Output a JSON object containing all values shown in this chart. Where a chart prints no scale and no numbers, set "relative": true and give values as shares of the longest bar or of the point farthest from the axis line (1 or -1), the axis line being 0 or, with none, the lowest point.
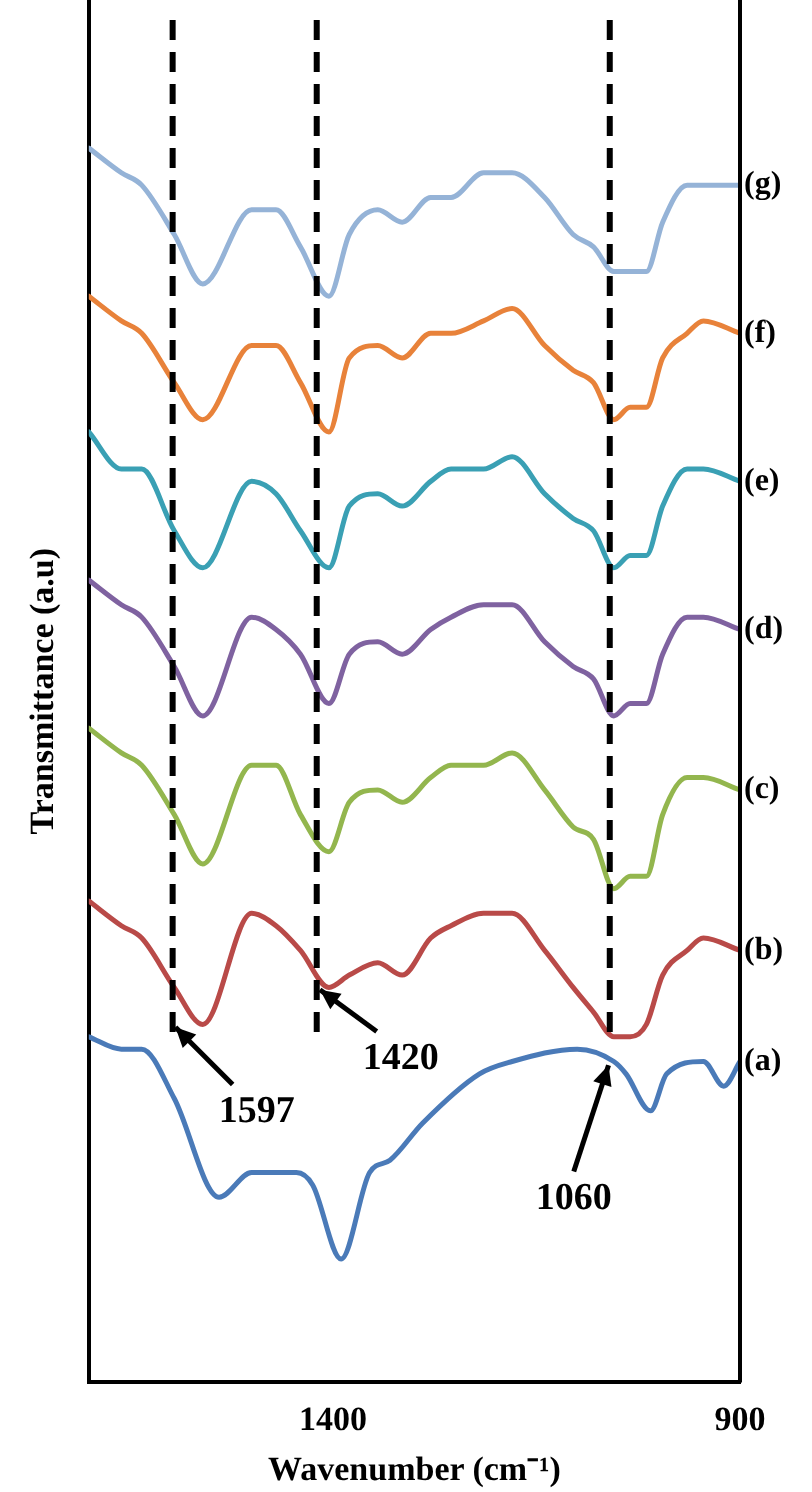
{
  "chart_data": {
    "type": "line",
    "xlabel": "Wavenumber (cm⁻¹)",
    "ylabel": "Transmittance (a.u)",
    "relative": true,
    "tick_labels": "x",
    "grid": false,
    "legend": false,
    "marker": "none",
    "line_style": "solid",
    "xlim": [
      1700,
      900
    ],
    "xticks": [
      1400,
      900
    ],
    "x": [
      1700,
      1660,
      1635,
      1595,
      1560,
      1500,
      1470,
      1440,
      1405,
      1380,
      1345,
      1315,
      1280,
      1255,
      1215,
      1180,
      1140,
      1105,
      1080,
      1055,
      1035,
      1015,
      995,
      965,
      945,
      900
    ],
    "series": [
      {
        "name": "(g)",
        "color": "#95b3d7",
        "values": [
          1.0,
          0.98,
          0.97,
          0.93,
          0.89,
          0.95,
          0.95,
          0.92,
          0.88,
          0.93,
          0.95,
          0.94,
          0.96,
          0.96,
          0.98,
          0.98,
          0.96,
          0.93,
          0.92,
          0.9,
          0.9,
          0.9,
          0.94,
          0.97,
          0.97,
          0.97
        ]
      },
      {
        "name": "(f)",
        "color": "#e8823a",
        "values": [
          0.88,
          0.86,
          0.85,
          0.81,
          0.78,
          0.84,
          0.84,
          0.81,
          0.77,
          0.83,
          0.84,
          0.83,
          0.85,
          0.85,
          0.86,
          0.87,
          0.84,
          0.82,
          0.81,
          0.78,
          0.79,
          0.79,
          0.83,
          0.85,
          0.86,
          0.85
        ]
      },
      {
        "name": "(e)",
        "color": "#3aa0b4",
        "values": [
          0.77,
          0.74,
          0.74,
          0.69,
          0.66,
          0.73,
          0.72,
          0.69,
          0.66,
          0.71,
          0.72,
          0.71,
          0.73,
          0.74,
          0.74,
          0.75,
          0.72,
          0.7,
          0.69,
          0.66,
          0.67,
          0.67,
          0.71,
          0.74,
          0.74,
          0.73
        ]
      },
      {
        "name": "(d)",
        "color": "#7f62a0",
        "values": [
          0.65,
          0.63,
          0.62,
          0.58,
          0.54,
          0.62,
          0.61,
          0.59,
          0.55,
          0.59,
          0.6,
          0.59,
          0.61,
          0.62,
          0.63,
          0.63,
          0.6,
          0.58,
          0.57,
          0.54,
          0.55,
          0.55,
          0.59,
          0.62,
          0.62,
          0.61
        ]
      },
      {
        "name": "(c)",
        "color": "#93b64e",
        "values": [
          0.53,
          0.51,
          0.5,
          0.46,
          0.42,
          0.5,
          0.5,
          0.46,
          0.43,
          0.47,
          0.48,
          0.47,
          0.49,
          0.5,
          0.5,
          0.51,
          0.48,
          0.45,
          0.44,
          0.4,
          0.41,
          0.41,
          0.46,
          0.49,
          0.49,
          0.48
        ]
      },
      {
        "name": "(b)",
        "color": "#b94a48",
        "values": [
          0.39,
          0.37,
          0.36,
          0.32,
          0.29,
          0.38,
          0.37,
          0.35,
          0.32,
          0.33,
          0.34,
          0.33,
          0.36,
          0.37,
          0.38,
          0.38,
          0.35,
          0.32,
          0.3,
          0.28,
          0.28,
          0.29,
          0.33,
          0.35,
          0.36,
          0.35
        ]
      },
      {
        "name": "(a)",
        "color": "#4a7ab8",
        "x": [
          1700,
          1660,
          1635,
          1595,
          1540,
          1500,
          1470,
          1445,
          1425,
          1390,
          1355,
          1330,
          1290,
          1220,
          1180,
          1100,
          1055,
          1040,
          1010,
          990,
          945,
          920,
          900
        ],
        "values": [
          0.28,
          0.27,
          0.27,
          0.23,
          0.15,
          0.17,
          0.17,
          0.17,
          0.16,
          0.1,
          0.17,
          0.18,
          0.21,
          0.25,
          0.26,
          0.27,
          0.26,
          0.25,
          0.22,
          0.25,
          0.26,
          0.24,
          0.26
        ]
      }
    ],
    "ref_lines": [
      {
        "axis": "x",
        "value": 1597,
        "color": "#000000",
        "line_style": "dashed"
      },
      {
        "axis": "x",
        "value": 1420,
        "color": "#000000",
        "line_style": "dashed"
      },
      {
        "axis": "x",
        "value": 1060,
        "color": "#000000",
        "line_style": "dashed"
      }
    ],
    "annotations": [
      {
        "text": "1597",
        "x": 1597,
        "y": 0.29
      },
      {
        "text": "1420",
        "x": 1420,
        "y": 0.32
      },
      {
        "text": "1060",
        "x": 1060,
        "y": 0.26
      }
    ]
  }
}
